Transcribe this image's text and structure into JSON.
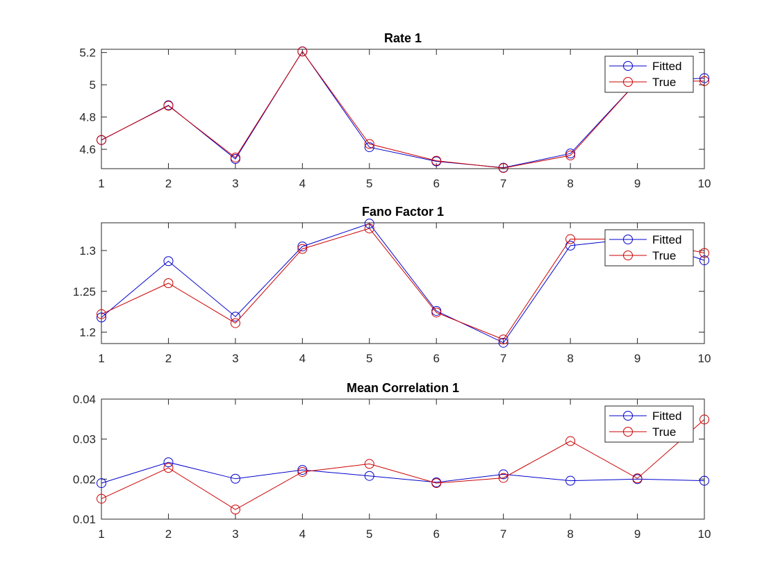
{
  "legend": [
    {
      "name": "Fitted",
      "color": "#0000cc"
    },
    {
      "name": "True",
      "color": "#cc0000"
    }
  ],
  "chart_data": [
    {
      "type": "line",
      "title": "Rate 1",
      "xlabel": "",
      "ylabel": "",
      "x": [
        1,
        2,
        3,
        4,
        5,
        6,
        7,
        8,
        9,
        10
      ],
      "xlim": [
        1,
        10
      ],
      "ylim": [
        4.48,
        5.22
      ],
      "xticks": [
        "1",
        "2",
        "3",
        "4",
        "5",
        "6",
        "7",
        "8",
        "9",
        "10"
      ],
      "yticks": [
        "4.6",
        "4.8",
        "5",
        "5.2"
      ],
      "ytick_values": [
        4.6,
        4.8,
        5.0,
        5.2
      ],
      "legend_placement": "top-right",
      "grid": false,
      "series": [
        {
          "name": "Fitted",
          "color": "#0000cc",
          "values": [
            4.657,
            4.873,
            4.54,
            5.207,
            4.613,
            4.525,
            4.486,
            4.574,
            5.02,
            5.041
          ]
        },
        {
          "name": "True",
          "color": "#cc0000",
          "values": [
            4.658,
            4.87,
            4.549,
            5.206,
            4.633,
            4.529,
            4.484,
            4.562,
            5.02,
            5.023
          ]
        }
      ]
    },
    {
      "type": "line",
      "title": "Fano Factor 1",
      "xlabel": "",
      "ylabel": "",
      "x": [
        1,
        2,
        3,
        4,
        5,
        6,
        7,
        8,
        9,
        10
      ],
      "xlim": [
        1,
        10
      ],
      "ylim": [
        1.186,
        1.334
      ],
      "xticks": [
        "1",
        "2",
        "3",
        "4",
        "5",
        "6",
        "7",
        "8",
        "9",
        "10"
      ],
      "yticks": [
        "1.2",
        "1.25",
        "1.3"
      ],
      "ytick_values": [
        1.2,
        1.25,
        1.3
      ],
      "legend_placement": "top-right",
      "grid": false,
      "series": [
        {
          "name": "Fitted",
          "color": "#0000cc",
          "values": [
            1.218,
            1.287,
            1.219,
            1.305,
            1.333,
            1.226,
            1.187,
            1.306,
            1.315,
            1.288
          ]
        },
        {
          "name": "True",
          "color": "#cc0000",
          "values": [
            1.222,
            1.26,
            1.211,
            1.302,
            1.327,
            1.224,
            1.191,
            1.314,
            1.314,
            1.297
          ]
        }
      ]
    },
    {
      "type": "line",
      "title": "Mean Correlation 1",
      "xlabel": "",
      "ylabel": "",
      "x": [
        1,
        2,
        3,
        4,
        5,
        6,
        7,
        8,
        9,
        10
      ],
      "xlim": [
        1,
        10
      ],
      "ylim": [
        0.01,
        0.04
      ],
      "xticks": [
        "1",
        "2",
        "3",
        "4",
        "5",
        "6",
        "7",
        "8",
        "9",
        "10"
      ],
      "yticks": [
        "0.01",
        "0.02",
        "0.03",
        "0.04"
      ],
      "ytick_values": [
        0.01,
        0.02,
        0.03,
        0.04
      ],
      "legend_placement": "top-right",
      "grid": false,
      "series": [
        {
          "name": "Fitted",
          "color": "#0000cc",
          "values": [
            0.019,
            0.0242,
            0.0201,
            0.0223,
            0.0208,
            0.0192,
            0.0212,
            0.0196,
            0.02,
            0.0196
          ]
        },
        {
          "name": "True",
          "color": "#cc0000",
          "values": [
            0.0151,
            0.0228,
            0.0124,
            0.0218,
            0.0238,
            0.019,
            0.0203,
            0.0295,
            0.0202,
            0.0349
          ]
        }
      ]
    }
  ]
}
